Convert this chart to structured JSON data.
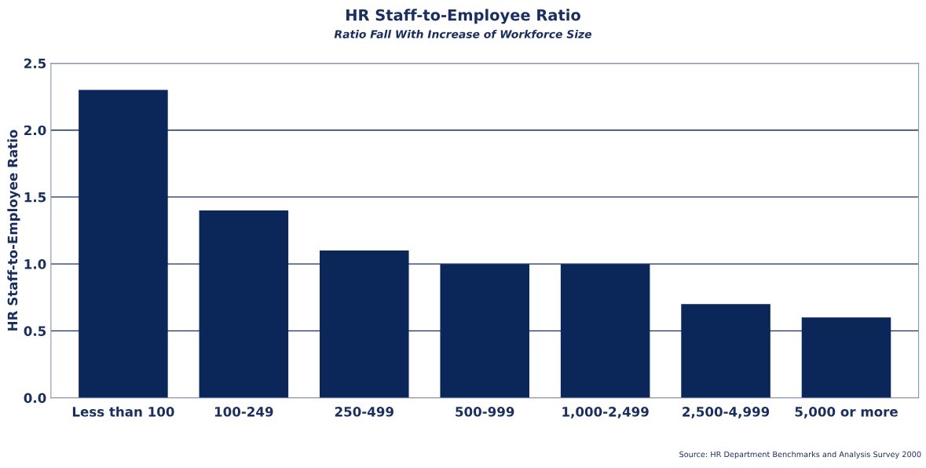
{
  "chart_data": {
    "type": "bar",
    "title": "HR Staff-to-Employee Ratio",
    "subtitle": "Ratio Fall With Increase of Workforce Size",
    "ylabel": "HR Staff-to-Employee Ratio",
    "categories": [
      "Less than 100",
      "100-249",
      "250-499",
      "500-999",
      "1,000-2,499",
      "2,500-4,999",
      "5,000 or more"
    ],
    "values": [
      2.3,
      1.4,
      1.1,
      1.0,
      1.0,
      0.7,
      0.6
    ],
    "color": "#0b2658",
    "ylim": [
      0,
      2.5
    ],
    "yticks": [
      {
        "value": 0,
        "label": "0.0"
      },
      {
        "value": 0.5,
        "label": "0.5"
      },
      {
        "value": 1,
        "label": "1.0"
      },
      {
        "value": 1.5,
        "label": "1.5"
      },
      {
        "value": 2,
        "label": "2.0"
      },
      {
        "value": 2.5,
        "label": "2.5"
      }
    ],
    "grid": "y",
    "annotations": [
      "Source: HR Department Benchmarks and Analysis Survey 2000"
    ]
  }
}
